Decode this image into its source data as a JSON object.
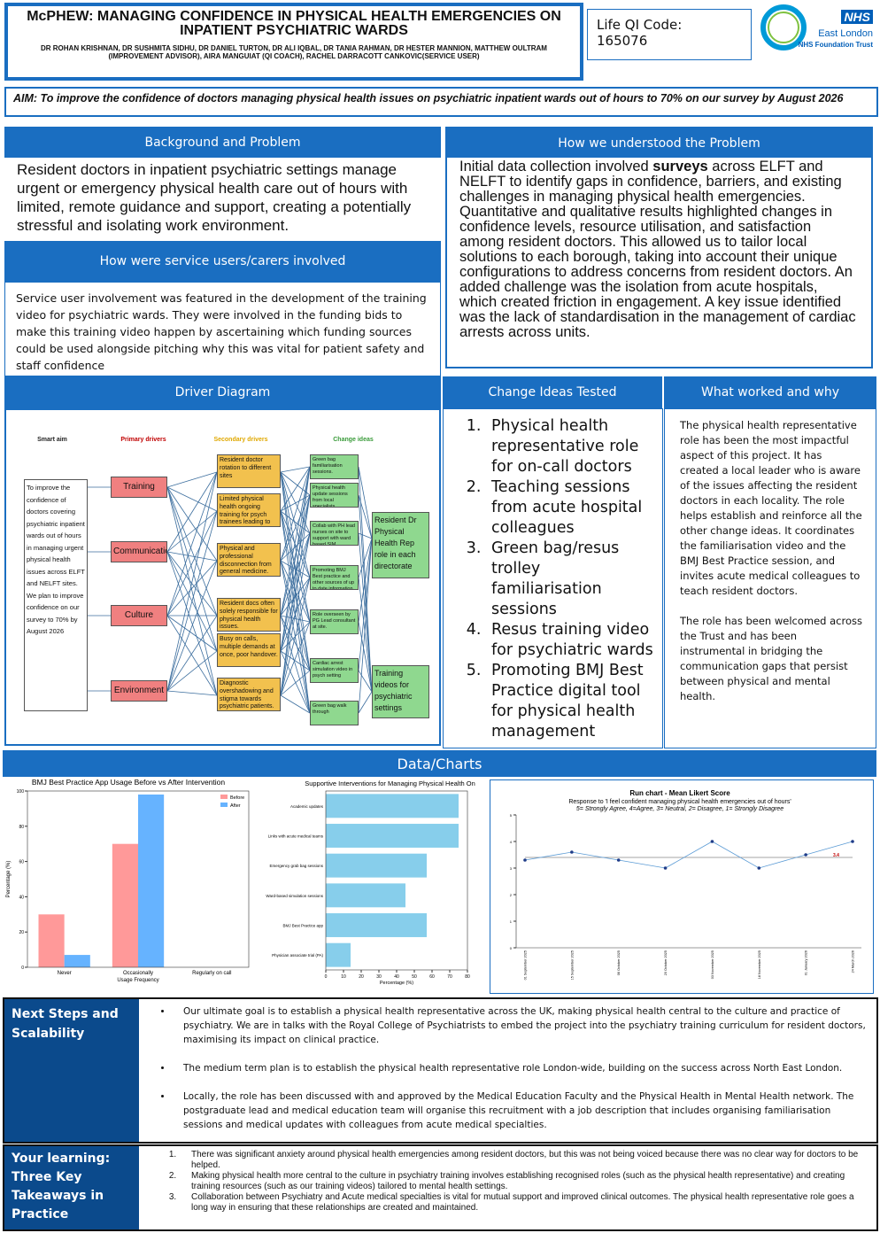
{
  "header": {
    "title": "McPHEW: MANAGING CONFIDENCE IN PHYSICAL HEALTH EMERGENCIES ON INPATIENT PSYCHIATRIC WARDS",
    "authors": "DR ROHAN KRISHNAN, DR SUSHMITA SIDHU, DR DANIEL TURTON, DR ALI IQBAL, DR TANIA RAHMAN, DR HESTER MANNION, MATTHEW OULTRAM (IMPROVEMENT ADVISOR), AIRA MANGUIAT (QI COACH), RACHEL DARRACOTT CANKOVIC(SERVICE USER)",
    "qi_label": "Life QI Code:",
    "qi_code": "165076",
    "logo_nhs": "NHS",
    "logo_org": "East London",
    "logo_trust": "NHS Foundation Trust"
  },
  "aim": "AIM: To improve the confidence of doctors managing physical health issues on psychiatric inpatient wards out of hours to 70% on our survey by August 2026",
  "background": {
    "heading": "Background and Problem",
    "text": "Resident doctors in inpatient psychiatric settings manage urgent or emergency physical health care out of hours with limited, remote guidance and support, creating a potentially stressful and isolating work environment."
  },
  "service_users": {
    "heading": "How were service users/carers involved",
    "text": "Service user involvement was featured in the development of the training video for psychiatric wards. They were involved in the funding bids to make this training video happen by ascertaining which funding sources could be used alongside pitching why this was vital for patient safety and staff confidence"
  },
  "understood": {
    "heading": "How we understood the Problem",
    "parts": [
      "Initial data collection involved ",
      "surveys",
      " across ELFT and NELFT to identify gaps in confidence, barriers, and existing challenges in managing physical health emergencies. Quantitative and qualitative results highlighted changes in confidence levels, resource utilisation, and satisfaction among resident doctors. This allowed us to tailor local solutions to each borough, taking into account their unique configurations to address concerns from resident doctors. An added challenge was the isolation from acute hospitals, which created friction in engagement. A key issue identified was the lack of standardisation in the management of cardiac arrests across units."
    ]
  },
  "driver": {
    "heading": "Driver Diagram",
    "col_labels": [
      "Smart aim",
      "Primary drivers",
      "Secondary drivers",
      "Change ideas"
    ],
    "aim": "To improve the confidence of doctors covering psychiatric inpatient wards out of hours in managing urgent physical health issues across ELFT and NELFT sites. We plan to improve confidence on our survey to 70% by August 2026",
    "primary": [
      "Training",
      "Communication",
      "Culture",
      "Environment"
    ],
    "secondary": [
      "Resident doctor rotation to different sites",
      "Limited physical health ongoing training for psych trainees leading to deskilling.",
      "Physical and professional disconnection from general medicine.",
      "Resident docs often solely responsible for physical health issues.",
      "Busy on calls, multiple demands at once, poor handover.",
      "Diagnostic overshadowing and stigma towards psychiatric patients."
    ],
    "change": [
      "Green bag familiarisation sessions.",
      "Physical health update sessions from local specialists",
      "Collab with PH lead nurses on site to support with ward based SIM",
      "Promoting BMJ Best practice and other sources of up to date information.",
      "Role overseen by PG Lead consultant at site.",
      "Cardiac arrest simulation video in psych setting",
      "Green bag walk through"
    ],
    "outcomes": [
      "Resident Dr Physical Health Rep role in each directorate",
      "Training videos for psychiatric settings"
    ]
  },
  "change_ideas": {
    "heading": "Change Ideas Tested",
    "items": [
      "Physical health representative role for on-call doctors",
      "Teaching sessions from acute hospital colleagues",
      "Green bag/resus trolley familiarisation sessions",
      "Resus training video for psychiatric wards",
      "Promoting BMJ Best Practice digital tool for physical health management"
    ]
  },
  "worked": {
    "heading": "What worked and why",
    "paragraphs": [
      "The physical health representative role has been the most impactful aspect of this project. It has created a local leader who is aware of the issues affecting the resident doctors in each locality. The role helps establish and reinforce all the other change ideas. It coordinates the familiarisation video and the BMJ Best Practice session, and invites acute medical colleagues to teach resident doctors.",
      "The role has been welcomed across the Trust and has been instrumental in bridging the communication gaps that persist between physical and mental health."
    ]
  },
  "data_heading": "Data/Charts",
  "chart_data": [
    {
      "type": "bar",
      "title": "BMJ Best Practice App Usage Before vs After Intervention",
      "categories": [
        "Never",
        "Occasionally",
        "Regularly on call"
      ],
      "series": [
        {
          "name": "Before",
          "color": "#ff9999",
          "values": [
            30,
            70,
            0
          ]
        },
        {
          "name": "After",
          "color": "#66b3ff",
          "values": [
            7,
            98,
            0
          ]
        }
      ],
      "ylim": [
        0,
        100
      ],
      "yticks": [
        0,
        20,
        40,
        60,
        80,
        100
      ],
      "y_label": "Percentage (%)",
      "x_label": "Usage Frequency"
    },
    {
      "type": "barh",
      "title": "Supportive Interventions for Managing Physical Health On Call",
      "categories": [
        "Academic updates",
        "Links with acute medical teams",
        "Emergency grab bag sessions",
        "Ward-based simulation sessions",
        "BMJ Best Practice app",
        "Physician associate trial (PA)"
      ],
      "values": [
        75,
        75,
        57,
        45,
        57,
        14
      ],
      "color": "#87ceeb",
      "xlim": [
        0,
        80
      ],
      "xticks": [
        0,
        10,
        20,
        30,
        40,
        50,
        60,
        70,
        80
      ],
      "x_label": "Percentage (%)"
    },
    {
      "type": "line",
      "title": "Run chart - Mean Likert Score",
      "subtitle": [
        "Response to 'I feel confident managing physical health emergencies out of hours'",
        "5= Strongly Agree, 4=Agree, 3= Neutral, 2= Disagree, 1= Strongly Disagree"
      ],
      "categories": [
        "01 September 2025",
        "15 September 2025",
        "06 October 2025",
        "20 October 2025",
        "03 November 2025",
        "18 November 2025",
        "01 January 2026",
        "24 March 2026"
      ],
      "values": [
        3.3,
        3.6,
        3.3,
        3.0,
        4.0,
        3.0,
        3.5,
        4.0
      ],
      "color": "#5b9bd5",
      "median": 3.4,
      "ylim": [
        0,
        5
      ],
      "yticks": [
        0,
        1,
        2,
        3,
        4,
        5
      ]
    }
  ],
  "next_steps": {
    "heading": "Next Steps and Scalability",
    "items": [
      "Our ultimate goal is to establish a physical health representative across the UK, making physical health central to the culture and practice of psychiatry. We are in talks with the Royal College of Psychiatrists to embed the project into the psychiatry training curriculum for resident doctors, maximising its impact on clinical practice.",
      "The medium term plan is to establish the physical health representative role London-wide, building on the success across North East London.",
      "Locally, the role has been discussed with and approved by the Medical Education Faculty and the Physical Health in Mental Health network. The postgraduate lead and medical education team will organise this recruitment with a job description that includes organising familiarisation sessions and medical updates with colleagues from acute medical specialties."
    ]
  },
  "learning": {
    "heading": "Your learning: Three Key Takeaways in Practice",
    "items": [
      "There was significant anxiety around physical health emergencies among resident doctors, but this was not being voiced because there was no clear way for doctors to be helped.",
      "Making physical health more central to the culture in psychiatry training involves establishing recognised roles (such as the physical health representative) and creating training resources (such as our training videos) tailored to mental health settings.",
      "Collaboration between Psychiatry and Acute medical specialties is vital for mutual support and improved clinical outcomes. The physical health representative role goes a long way in ensuring that these relationships are created and maintained."
    ]
  }
}
